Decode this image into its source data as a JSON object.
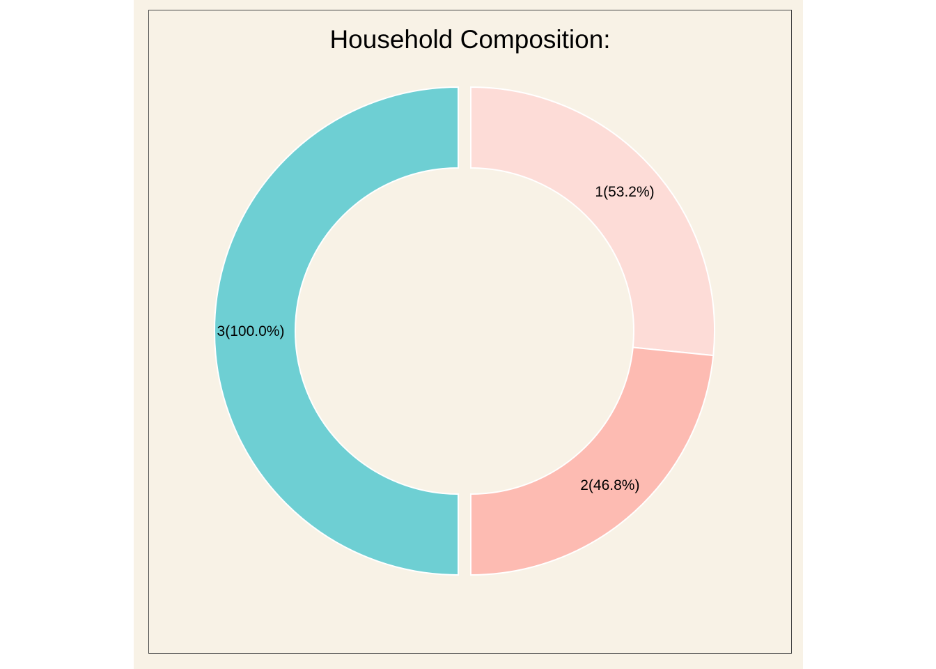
{
  "chart_data": {
    "type": "pie",
    "title": "Household Composition:",
    "categories": [
      "1",
      "2",
      "3"
    ],
    "values": [
      53.2,
      46.8,
      100.0
    ],
    "labels": [
      "1(53.2%)",
      "2(46.8%)",
      "3(100.0%)"
    ],
    "colors": [
      "#fddcd7",
      "#fdbbb2",
      "#6ecfd3"
    ],
    "background_color": "#f8f2e6",
    "legend": "none",
    "grid": false
  }
}
